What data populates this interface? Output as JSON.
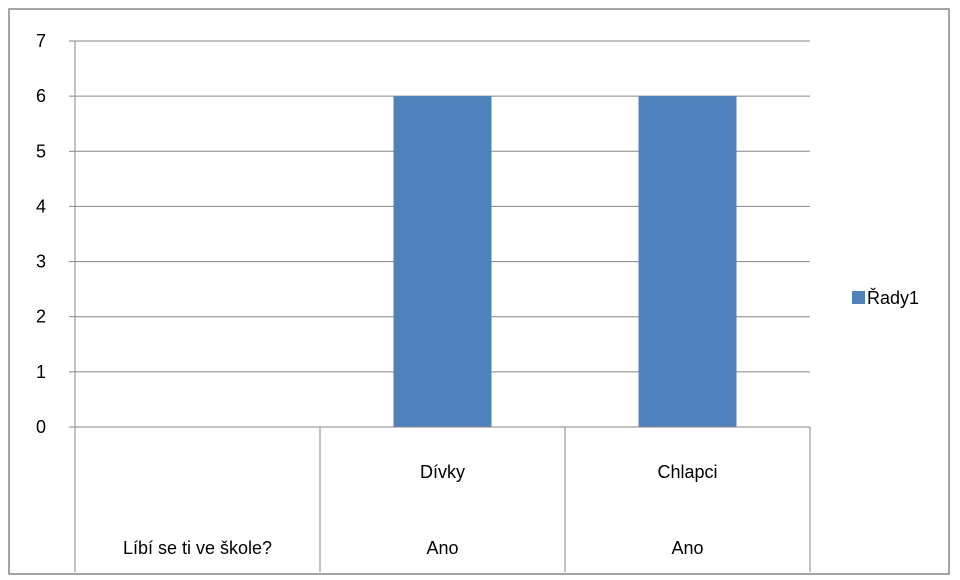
{
  "chart_data": {
    "type": "bar",
    "categories": [
      [
        "Líbí se ti ve škole?"
      ],
      [
        "Ano",
        "Dívky"
      ],
      [
        "Ano",
        "Chlapci"
      ]
    ],
    "category_levels": {
      "outer": [
        "Líbí se ti ve škole?",
        "Ano",
        "Ano"
      ],
      "inner": [
        "",
        "Dívky",
        "Chlapci"
      ]
    },
    "series": [
      {
        "name": "Řady1",
        "values": [
          null,
          6,
          6
        ],
        "color": "#4F81BD"
      }
    ],
    "ylim": [
      0,
      7
    ],
    "yticks": [
      0,
      1,
      2,
      3,
      4,
      5,
      6,
      7
    ],
    "grid": true,
    "legend": "right",
    "title": "",
    "xlabel": "",
    "ylabel": ""
  }
}
